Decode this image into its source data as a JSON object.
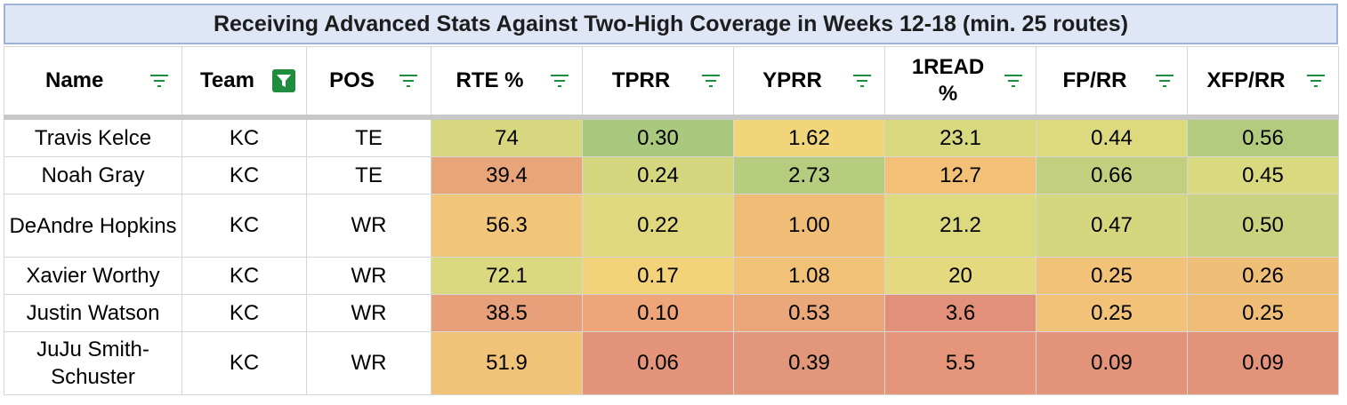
{
  "title": "Receiving Advanced Stats Against Two-High Coverage in Weeks 12-18 (min. 25 routes)",
  "columns": [
    "Name",
    "Team",
    "POS",
    "RTE %",
    "TPRR",
    "YPRR",
    "1READ %",
    "FP/RR",
    "XFP/RR"
  ],
  "active_filter_column": "Team",
  "rows": [
    {
      "name": "Travis Kelce",
      "team": "KC",
      "pos": "TE",
      "rte": "74",
      "tprr": "0.30",
      "yprr": "1.62",
      "oneread": "23.1",
      "fprr": "0.44",
      "xfprr": "0.56"
    },
    {
      "name": "Noah Gray",
      "team": "KC",
      "pos": "TE",
      "rte": "39.4",
      "tprr": "0.24",
      "yprr": "2.73",
      "oneread": "12.7",
      "fprr": "0.66",
      "xfprr": "0.45"
    },
    {
      "name": "DeAndre Hopkins",
      "team": "KC",
      "pos": "WR",
      "rte": "56.3",
      "tprr": "0.22",
      "yprr": "1.00",
      "oneread": "21.2",
      "fprr": "0.47",
      "xfprr": "0.50"
    },
    {
      "name": "Xavier Worthy",
      "team": "KC",
      "pos": "WR",
      "rte": "72.1",
      "tprr": "0.17",
      "yprr": "1.08",
      "oneread": "20",
      "fprr": "0.25",
      "xfprr": "0.26"
    },
    {
      "name": "Justin Watson",
      "team": "KC",
      "pos": "WR",
      "rte": "38.5",
      "tprr": "0.10",
      "yprr": "0.53",
      "oneread": "3.6",
      "fprr": "0.25",
      "xfprr": "0.25"
    },
    {
      "name": "JuJu Smith-Schuster",
      "team": "KC",
      "pos": "WR",
      "rte": "51.9",
      "tprr": "0.06",
      "yprr": "0.39",
      "oneread": "5.5",
      "fprr": "0.09",
      "xfprr": "0.09"
    }
  ],
  "cell_colors": [
    {
      "rte": "#d7d77f",
      "tprr": "#a9c97e",
      "yprr": "#f1d57a",
      "oneread": "#d8d87e",
      "fprr": "#dcd97f",
      "xfprr": "#b2cb7e"
    },
    {
      "rte": "#e8a57a",
      "tprr": "#d5d77f",
      "yprr": "#b6cc7e",
      "oneread": "#f2c077",
      "fprr": "#c1cf7e",
      "xfprr": "#d9d97f"
    },
    {
      "rte": "#f1c67a",
      "tprr": "#dfd87f",
      "yprr": "#f0bd77",
      "oneread": "#dcd97f",
      "fprr": "#d5d77f",
      "xfprr": "#c9d27e"
    },
    {
      "rte": "#dad97f",
      "tprr": "#f3d379",
      "yprr": "#f2c178",
      "oneread": "#e5d980",
      "fprr": "#f2c278",
      "xfprr": "#f0bf77"
    },
    {
      "rte": "#e8a07a",
      "tprr": "#eda579",
      "yprr": "#eaa87a",
      "oneread": "#e3907a",
      "fprr": "#f2c278",
      "xfprr": "#f0bd77"
    },
    {
      "rte": "#f1c379",
      "tprr": "#e3947a",
      "yprr": "#e3977a",
      "oneread": "#e5967a",
      "fprr": "#e3937a",
      "xfprr": "#e3937a"
    }
  ]
}
